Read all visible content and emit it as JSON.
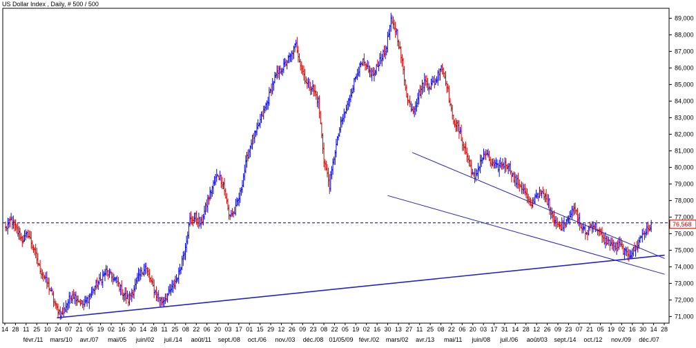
{
  "chart_data": {
    "type": "ohlc",
    "title": "US Dollar Index , Daily, # 500 / 500",
    "ylim": [
      70.6,
      89.6
    ],
    "y_ticks": [
      "71,000",
      "72,000",
      "73,000",
      "74,000",
      "75,000",
      "76,000",
      "77,000",
      "78,000",
      "79,000",
      "80,000",
      "81,000",
      "82,000",
      "83,000",
      "84,000",
      "85,000",
      "86,000",
      "87,000",
      "88,000",
      "89,000"
    ],
    "last_price_label": "76,568",
    "last_price": 76.568,
    "reference_level": 76.65,
    "day_labels": [
      "14",
      "28",
      "11",
      "25",
      "10",
      "24",
      "07",
      "21",
      "05",
      "19",
      "02",
      "16",
      "30",
      "14",
      "28",
      "11",
      "25",
      "08",
      "22",
      "06",
      "20",
      "03",
      "17",
      "01",
      "15",
      "29",
      "12",
      "26",
      "09",
      "23",
      "08",
      "22",
      "05",
      "19",
      "02",
      "16",
      "30",
      "13",
      "27",
      "11",
      "25",
      "08",
      "22",
      "06",
      "20",
      "03",
      "17",
      "31",
      "14",
      "28",
      "12",
      "26",
      "09",
      "23",
      "07",
      "21",
      "05",
      "19",
      "02",
      "16",
      "30",
      "14",
      "28"
    ],
    "month_labels": [
      "févr./11",
      "mars/10",
      "avr./07",
      "mai/05",
      "juin/02",
      "juil./14",
      "août/11",
      "sept./08",
      "oct./06",
      "nov./03",
      "déc./08",
      "01/05/09",
      "févr./02",
      "mars/02",
      "avr./13",
      "mai/11",
      "juin/08",
      "juil./06",
      "août/03",
      "sept./14",
      "oct./12",
      "nov./09",
      "déc./07"
    ],
    "ohlc_anchor_closes": [
      [
        0,
        76.3
      ],
      [
        5,
        76.8
      ],
      [
        10,
        76.2
      ],
      [
        15,
        75.6
      ],
      [
        20,
        76.0
      ],
      [
        25,
        75.1
      ],
      [
        30,
        74.0
      ],
      [
        35,
        73.3
      ],
      [
        40,
        72.6
      ],
      [
        45,
        71.6
      ],
      [
        50,
        71.1
      ],
      [
        55,
        71.8
      ],
      [
        60,
        72.4
      ],
      [
        65,
        72.0
      ],
      [
        70,
        71.7
      ],
      [
        75,
        72.2
      ],
      [
        80,
        72.8
      ],
      [
        85,
        73.2
      ],
      [
        90,
        73.7
      ],
      [
        95,
        73.4
      ],
      [
        100,
        73.1
      ],
      [
        105,
        72.4
      ],
      [
        110,
        72.0
      ],
      [
        115,
        72.7
      ],
      [
        120,
        73.5
      ],
      [
        125,
        74.0
      ],
      [
        130,
        73.1
      ],
      [
        135,
        72.3
      ],
      [
        140,
        71.9
      ],
      [
        145,
        72.3
      ],
      [
        150,
        72.8
      ],
      [
        155,
        73.6
      ],
      [
        160,
        75.0
      ],
      [
        165,
        76.8
      ],
      [
        170,
        77.0
      ],
      [
        175,
        76.6
      ],
      [
        180,
        77.8
      ],
      [
        185,
        78.8
      ],
      [
        190,
        79.6
      ],
      [
        195,
        79.0
      ],
      [
        200,
        77.1
      ],
      [
        205,
        77.3
      ],
      [
        210,
        78.4
      ],
      [
        215,
        80.2
      ],
      [
        220,
        81.6
      ],
      [
        225,
        82.2
      ],
      [
        230,
        83.2
      ],
      [
        235,
        84.1
      ],
      [
        240,
        85.2
      ],
      [
        245,
        85.8
      ],
      [
        250,
        86.2
      ],
      [
        255,
        86.7
      ],
      [
        260,
        87.4
      ],
      [
        265,
        86.0
      ],
      [
        270,
        85.0
      ],
      [
        275,
        84.8
      ],
      [
        280,
        84.0
      ],
      [
        285,
        80.5
      ],
      [
        290,
        78.9
      ],
      [
        295,
        81.0
      ],
      [
        300,
        82.6
      ],
      [
        305,
        83.5
      ],
      [
        310,
        84.7
      ],
      [
        315,
        85.8
      ],
      [
        320,
        86.3
      ],
      [
        325,
        85.8
      ],
      [
        330,
        85.6
      ],
      [
        335,
        86.5
      ],
      [
        340,
        87.0
      ],
      [
        345,
        88.8
      ],
      [
        350,
        88.2
      ],
      [
        355,
        86.3
      ],
      [
        360,
        84.0
      ],
      [
        365,
        83.5
      ],
      [
        370,
        84.4
      ],
      [
        375,
        85.2
      ],
      [
        380,
        84.9
      ],
      [
        385,
        85.2
      ],
      [
        390,
        86.2
      ],
      [
        395,
        85.0
      ],
      [
        400,
        83.0
      ],
      [
        405,
        82.4
      ],
      [
        410,
        81.3
      ],
      [
        415,
        80.3
      ],
      [
        420,
        79.2
      ],
      [
        425,
        80.4
      ],
      [
        430,
        80.8
      ],
      [
        435,
        80.2
      ],
      [
        440,
        80.0
      ],
      [
        445,
        80.2
      ],
      [
        450,
        80.2
      ],
      [
        455,
        79.3
      ],
      [
        460,
        79.0
      ],
      [
        465,
        78.5
      ],
      [
        470,
        77.6
      ],
      [
        475,
        78.4
      ],
      [
        480,
        78.4
      ],
      [
        485,
        78.0
      ],
      [
        490,
        77.1
      ],
      [
        495,
        76.4
      ],
      [
        500,
        76.6
      ],
      [
        505,
        77.2
      ],
      [
        510,
        77.4
      ],
      [
        515,
        76.4
      ],
      [
        520,
        76.0
      ],
      [
        525,
        76.6
      ],
      [
        530,
        76.3
      ],
      [
        535,
        75.6
      ],
      [
        540,
        75.5
      ],
      [
        545,
        75.2
      ],
      [
        550,
        75.3
      ],
      [
        555,
        74.8
      ],
      [
        560,
        74.8
      ],
      [
        565,
        75.2
      ],
      [
        570,
        76.0
      ],
      [
        575,
        76.2
      ],
      [
        578,
        76.57
      ]
    ],
    "trendlines": [
      {
        "desc": "long support",
        "from": [
          46,
          70.92
        ],
        "to": [
          590,
          74.7
        ]
      },
      {
        "desc": "channel upper",
        "from": [
          364,
          80.9
        ],
        "to": [
          590,
          74.5
        ]
      },
      {
        "desc": "channel lower",
        "from": [
          342,
          78.3
        ],
        "to": [
          590,
          73.55
        ]
      }
    ],
    "grid": false,
    "colors": {
      "up": "#0000ee",
      "down": "#cc0000",
      "trendline": "#2222cc",
      "reference": "#000066",
      "badge": "#d00000",
      "axis": "#000000",
      "background": "#ffffff"
    }
  }
}
